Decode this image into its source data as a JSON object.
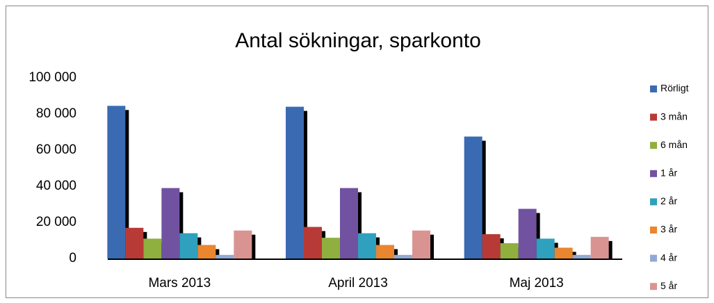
{
  "chart_data": {
    "type": "bar",
    "title": "Antal sökningar, sparkonto",
    "categories": [
      "Mars 2013",
      "April 2013",
      "Maj 2013"
    ],
    "series": [
      {
        "name": "Rörligt",
        "color": "#3a6bb2",
        "values": [
          84500,
          84000,
          67500
        ]
      },
      {
        "name": "3 mån",
        "color": "#b83a36",
        "values": [
          17000,
          17500,
          13500
        ]
      },
      {
        "name": "6 mån",
        "color": "#8fb03f",
        "values": [
          11000,
          11500,
          8500
        ]
      },
      {
        "name": "1 år",
        "color": "#7052a0",
        "values": [
          39000,
          39000,
          27500
        ]
      },
      {
        "name": "2 år",
        "color": "#2fa0bd",
        "values": [
          14000,
          14000,
          11000
        ]
      },
      {
        "name": "3 år",
        "color": "#ea8530",
        "values": [
          7500,
          7500,
          6000
        ]
      },
      {
        "name": "4 år",
        "color": "#90a9d4",
        "values": [
          2000,
          2000,
          2000
        ]
      },
      {
        "name": "5 år",
        "color": "#d99492",
        "values": [
          15500,
          15500,
          12000
        ]
      }
    ],
    "ylim": [
      0,
      100000
    ],
    "yticks": [
      0,
      {
        "value": 20000,
        "label": "20 000"
      },
      {
        "value": 40000,
        "label": "40 000"
      },
      {
        "value": 60000,
        "label": "60 000"
      },
      {
        "value": 80000,
        "label": "80 000"
      },
      {
        "value": 100000,
        "label": "100 000"
      }
    ],
    "grid": false,
    "legend": "right",
    "shadow": true
  }
}
